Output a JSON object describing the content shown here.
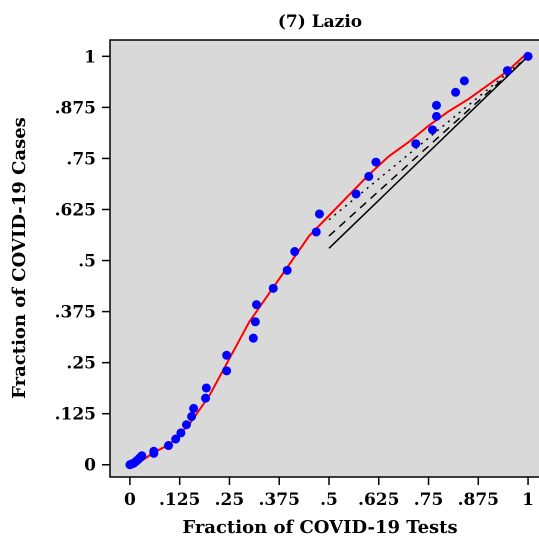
{
  "chart_data": {
    "type": "scatter",
    "title": "(7) Lazio",
    "xlabel": "Fraction of COVID-19 Tests",
    "ylabel": "Fraction of COVID-19 Cases",
    "xlim": [
      -0.05,
      1.03
    ],
    "ylim": [
      -0.03,
      1.04
    ],
    "grid": false,
    "background": "#d9d9d9",
    "colors": {
      "points": "#0000ff",
      "fit": "#ff0000",
      "reference": "#000000"
    },
    "x_ticks": [
      {
        "value": 0,
        "label": "0"
      },
      {
        "value": 0.125,
        "label": ".125"
      },
      {
        "value": 0.25,
        "label": ".25"
      },
      {
        "value": 0.375,
        "label": ".375"
      },
      {
        "value": 0.5,
        "label": ".5"
      },
      {
        "value": 0.625,
        "label": ".625"
      },
      {
        "value": 0.75,
        "label": ".75"
      },
      {
        "value": 0.875,
        "label": ".875"
      },
      {
        "value": 1,
        "label": "1"
      }
    ],
    "y_ticks": [
      {
        "value": 0,
        "label": "0"
      },
      {
        "value": 0.125,
        "label": ".125"
      },
      {
        "value": 0.25,
        "label": ".25"
      },
      {
        "value": 0.375,
        "label": ".375"
      },
      {
        "value": 0.5,
        "label": ".5"
      },
      {
        "value": 0.625,
        "label": ".625"
      },
      {
        "value": 0.75,
        "label": ".75"
      },
      {
        "value": 0.875,
        "label": ".875"
      },
      {
        "value": 1,
        "label": "1"
      }
    ],
    "points": [
      {
        "x": 0.0,
        "y": 0.0
      },
      {
        "x": 0.005,
        "y": 0.002
      },
      {
        "x": 0.01,
        "y": 0.004
      },
      {
        "x": 0.015,
        "y": 0.008
      },
      {
        "x": 0.02,
        "y": 0.012
      },
      {
        "x": 0.025,
        "y": 0.017
      },
      {
        "x": 0.03,
        "y": 0.022
      },
      {
        "x": 0.06,
        "y": 0.028
      },
      {
        "x": 0.06,
        "y": 0.033
      },
      {
        "x": 0.097,
        "y": 0.047
      },
      {
        "x": 0.115,
        "y": 0.063
      },
      {
        "x": 0.128,
        "y": 0.078
      },
      {
        "x": 0.142,
        "y": 0.098
      },
      {
        "x": 0.155,
        "y": 0.118
      },
      {
        "x": 0.16,
        "y": 0.138
      },
      {
        "x": 0.19,
        "y": 0.163
      },
      {
        "x": 0.192,
        "y": 0.188
      },
      {
        "x": 0.243,
        "y": 0.23
      },
      {
        "x": 0.243,
        "y": 0.268
      },
      {
        "x": 0.31,
        "y": 0.31
      },
      {
        "x": 0.315,
        "y": 0.35
      },
      {
        "x": 0.318,
        "y": 0.392
      },
      {
        "x": 0.36,
        "y": 0.432
      },
      {
        "x": 0.395,
        "y": 0.476
      },
      {
        "x": 0.414,
        "y": 0.522
      },
      {
        "x": 0.468,
        "y": 0.57
      },
      {
        "x": 0.476,
        "y": 0.614
      },
      {
        "x": 0.568,
        "y": 0.663
      },
      {
        "x": 0.6,
        "y": 0.706
      },
      {
        "x": 0.618,
        "y": 0.741
      },
      {
        "x": 0.718,
        "y": 0.786
      },
      {
        "x": 0.76,
        "y": 0.82
      },
      {
        "x": 0.77,
        "y": 0.853
      },
      {
        "x": 0.77,
        "y": 0.88
      },
      {
        "x": 0.818,
        "y": 0.912
      },
      {
        "x": 0.84,
        "y": 0.94
      },
      {
        "x": 0.948,
        "y": 0.965
      },
      {
        "x": 1.0,
        "y": 1.0
      }
    ],
    "fit_curve": [
      [
        0.0,
        0.0
      ],
      [
        0.03,
        0.01
      ],
      [
        0.06,
        0.03
      ],
      [
        0.1,
        0.05
      ],
      [
        0.15,
        0.1
      ],
      [
        0.2,
        0.17
      ],
      [
        0.25,
        0.26
      ],
      [
        0.3,
        0.35
      ],
      [
        0.35,
        0.42
      ],
      [
        0.4,
        0.49
      ],
      [
        0.45,
        0.56
      ],
      [
        0.5,
        0.61
      ],
      [
        0.55,
        0.66
      ],
      [
        0.6,
        0.71
      ],
      [
        0.65,
        0.755
      ],
      [
        0.7,
        0.79
      ],
      [
        0.75,
        0.83
      ],
      [
        0.8,
        0.865
      ],
      [
        0.85,
        0.895
      ],
      [
        0.9,
        0.93
      ],
      [
        0.95,
        0.965
      ],
      [
        1.0,
        1.01
      ]
    ],
    "reference_lines": [
      {
        "style": "solid",
        "from": [
          0.5,
          0.53
        ],
        "to": [
          1.0,
          1.0
        ]
      },
      {
        "style": "dashed",
        "from": [
          0.5,
          0.56
        ],
        "to": [
          1.0,
          1.0
        ]
      },
      {
        "style": "dotted",
        "from": [
          0.5,
          0.6
        ],
        "to": [
          1.0,
          1.0
        ]
      }
    ]
  }
}
